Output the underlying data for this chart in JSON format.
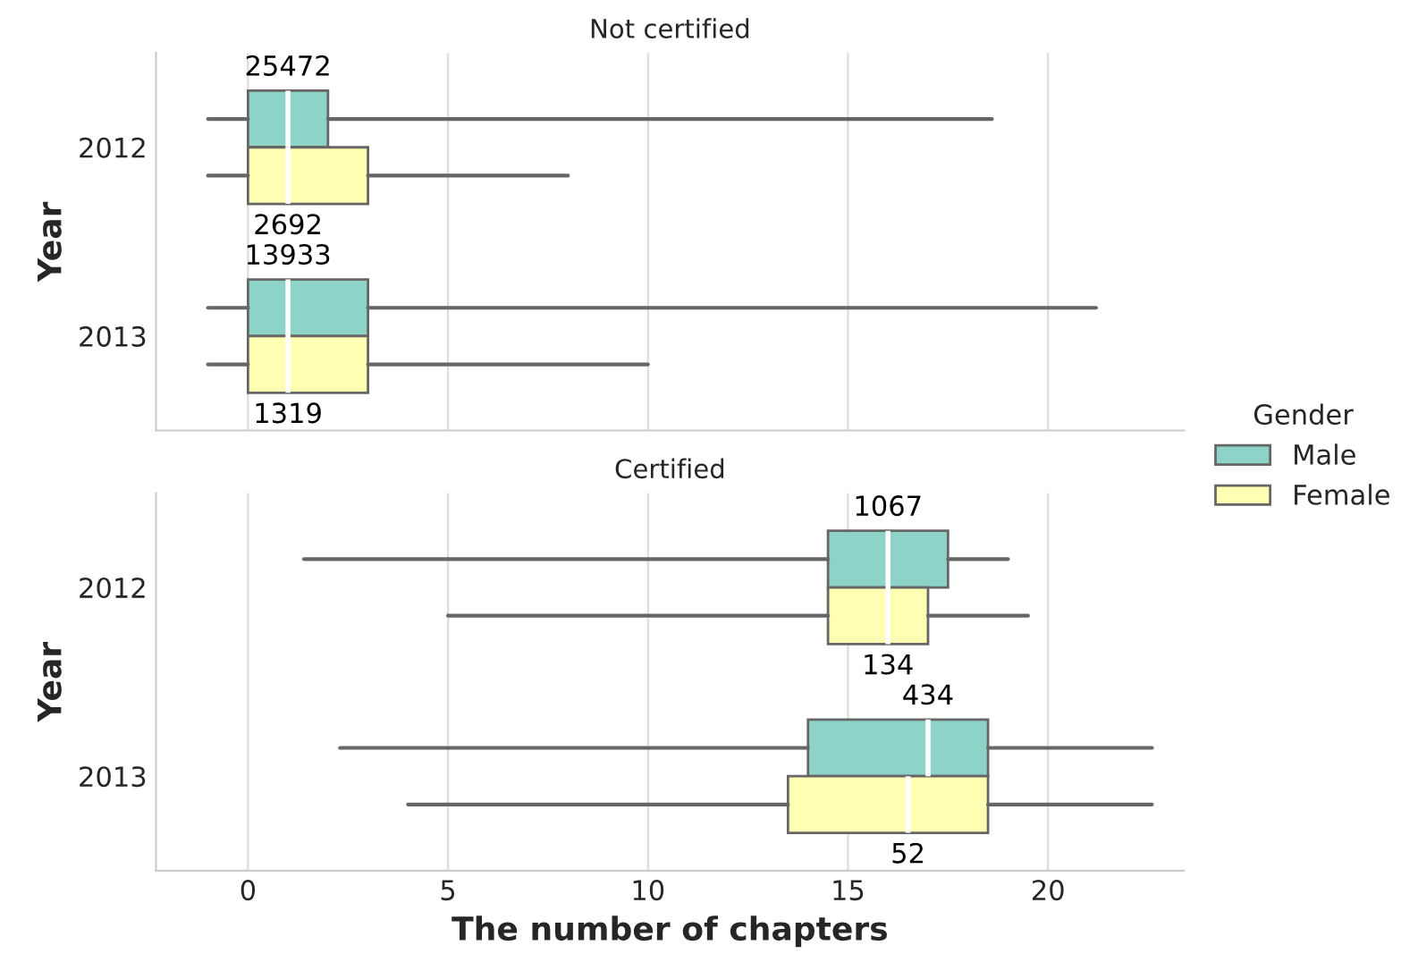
{
  "chart_data": [
    {
      "type": "box",
      "title": "Not certified",
      "ylabel": "Year",
      "categories": [
        "2012",
        "2013"
      ],
      "orientation": "horizontal",
      "xlim": [
        -2.3,
        23.4
      ],
      "xticks": [
        0,
        5,
        10,
        15,
        20
      ],
      "tick_labels": "y",
      "grid": "x",
      "legend": "bottom right",
      "legend_title": "Gender",
      "series": [
        {
          "name": "Male",
          "color": "#8dd3c7",
          "boxes": [
            {
              "low": -1,
              "q1": 0,
              "median": 1,
              "q3": 2,
              "high": 18.6
            },
            {
              "low": -1,
              "q1": 0,
              "median": 1,
              "q3": 3,
              "high": 21.2
            }
          ],
          "value_labels": [
            "25472",
            "13933"
          ]
        },
        {
          "name": "Female",
          "color": "#ffffb3",
          "boxes": [
            {
              "low": -1,
              "q1": 0,
              "median": 1,
              "q3": 3,
              "high": 8
            },
            {
              "low": -1,
              "q1": 0,
              "median": 1,
              "q3": 3,
              "high": 10
            }
          ],
          "value_labels": [
            "2692",
            "1319"
          ]
        }
      ]
    },
    {
      "type": "box",
      "title": "Certified",
      "ylabel": "Year",
      "xlabel": "The number of chapters",
      "categories": [
        "2012",
        "2013"
      ],
      "orientation": "horizontal",
      "xlim": [
        -2.3,
        23.4
      ],
      "xticks": [
        0,
        5,
        10,
        15,
        20
      ],
      "grid": "x",
      "series": [
        {
          "color": "#8dd3c7",
          "boxes": [
            {
              "low": 1.4,
              "q1": 14.5,
              "median": 16,
              "q3": 17.5,
              "high": 19
            },
            {
              "low": 2.3,
              "q1": 14,
              "median": 17,
              "q3": 18.5,
              "high": 22.6
            }
          ],
          "value_labels": [
            "1067",
            "434"
          ]
        },
        {
          "color": "#ffffb3",
          "boxes": [
            {
              "low": 5,
              "q1": 14.5,
              "median": 16,
              "q3": 17,
              "high": 19.5
            },
            {
              "low": 4,
              "q1": 13.5,
              "median": 16.5,
              "q3": 18.5,
              "high": 22.6
            }
          ],
          "value_labels": [
            "134",
            "52"
          ]
        }
      ]
    }
  ]
}
